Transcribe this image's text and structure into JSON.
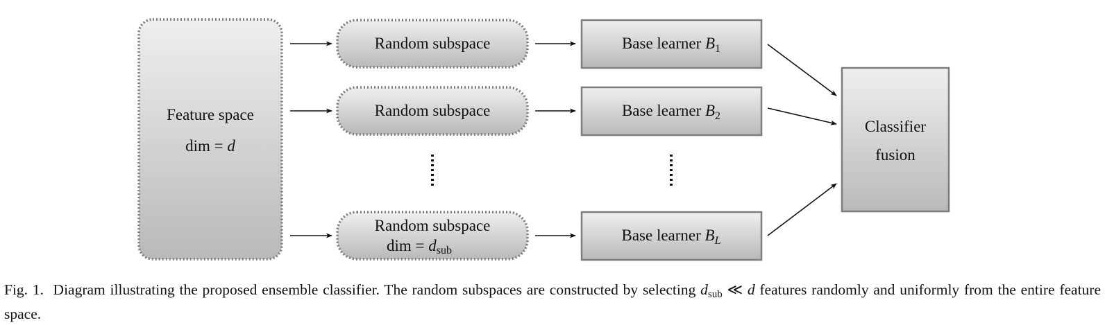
{
  "feature_space": {
    "line1": "Feature space",
    "line2_prefix": "dim = ",
    "line2_var": "d"
  },
  "subspaces": [
    {
      "label": "Random subspace"
    },
    {
      "label": "Random subspace"
    },
    {
      "label": "Random subspace",
      "dim_prefix": "dim = ",
      "dim_var": "d",
      "dim_sub": "sub"
    }
  ],
  "learners": [
    {
      "prefix": "Base learner ",
      "var": "B",
      "sub": "1"
    },
    {
      "prefix": "Base learner ",
      "var": "B",
      "sub": "2"
    },
    {
      "prefix": "Base learner ",
      "var": "B",
      "sub": "L"
    }
  ],
  "fusion": {
    "line1": "Classifier",
    "line2": "fusion"
  },
  "caption": {
    "fig_label": "Fig. 1.",
    "text_before": "Diagram illustrating the proposed ensemble classifier. The random subspaces are constructed by selecting ",
    "var_d": "d",
    "sub_text": "sub",
    "relation": " ≪ ",
    "var_d2": "d",
    "text_after": " features randomly and uniformly from the entire feature space."
  }
}
